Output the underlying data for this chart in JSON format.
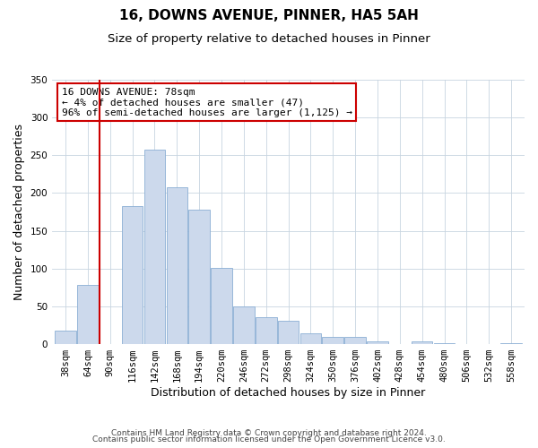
{
  "title": "16, DOWNS AVENUE, PINNER, HA5 5AH",
  "subtitle": "Size of property relative to detached houses in Pinner",
  "xlabel": "Distribution of detached houses by size in Pinner",
  "ylabel": "Number of detached properties",
  "bar_labels": [
    "38sqm",
    "64sqm",
    "90sqm",
    "116sqm",
    "142sqm",
    "168sqm",
    "194sqm",
    "220sqm",
    "246sqm",
    "272sqm",
    "298sqm",
    "324sqm",
    "350sqm",
    "376sqm",
    "402sqm",
    "428sqm",
    "454sqm",
    "480sqm",
    "506sqm",
    "532sqm",
    "558sqm"
  ],
  "bar_values": [
    18,
    78,
    0,
    183,
    258,
    208,
    178,
    101,
    50,
    36,
    31,
    14,
    10,
    10,
    4,
    0,
    4,
    1,
    0,
    0,
    1
  ],
  "bar_color": "#ccd9ec",
  "bar_edge_color": "#8bafd4",
  "annotation_title": "16 DOWNS AVENUE: 78sqm",
  "annotation_line1": "← 4% of detached houses are smaller (47)",
  "annotation_line2": "96% of semi-detached houses are larger (1,125) →",
  "annotation_box_color": "#ffffff",
  "annotation_box_edge": "#cc0000",
  "property_line_color": "#cc0000",
  "ylim": [
    0,
    350
  ],
  "yticks": [
    0,
    50,
    100,
    150,
    200,
    250,
    300,
    350
  ],
  "footer1": "Contains HM Land Registry data © Crown copyright and database right 2024.",
  "footer2": "Contains public sector information licensed under the Open Government Licence v3.0.",
  "title_fontsize": 11,
  "subtitle_fontsize": 9.5,
  "axis_label_fontsize": 9,
  "tick_fontsize": 7.5,
  "annotation_fontsize": 8,
  "footer_fontsize": 6.5
}
